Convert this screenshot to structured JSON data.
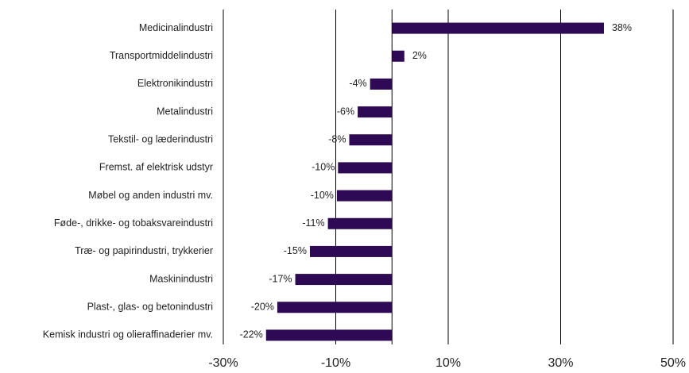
{
  "chart_data": {
    "type": "bar",
    "orientation": "horizontal",
    "categories": [
      "Medicinalindustri",
      "Transportmiddelindustri",
      "Elektronikindustri",
      "Metalindustri",
      "Tekstil- og læderindustri",
      "Fremst. af elektrisk udstyr",
      "Møbel og anden industri mv.",
      "Føde-, drikke- og tobaksvareindustri",
      "Træ- og papirindustri, trykkerier",
      "Maskinindustri",
      "Plast-, glas- og betonindustri",
      "Kemisk industri og olieraffinaderier mv."
    ],
    "values": [
      37.7,
      2.2,
      -3.9,
      -6.1,
      -7.6,
      -9.6,
      -9.8,
      -11.4,
      -14.6,
      -17.2,
      -20.4,
      -22.4
    ],
    "value_labels": [
      "38%",
      "2%",
      "-4%",
      "-6%",
      "-8%",
      "-10%",
      "-10%",
      "-11%",
      "-15%",
      "-17%",
      "-20%",
      "-22%"
    ],
    "color": "#2e0a54",
    "xlim": [
      -30,
      50
    ],
    "xticks": [
      {
        "value": -30,
        "label": "-30%"
      },
      {
        "value": -10,
        "label": "-10%"
      },
      {
        "value": 10,
        "label": "10%"
      },
      {
        "value": 30,
        "label": "30%"
      },
      {
        "value": 50,
        "label": "50%"
      }
    ],
    "grid": true
  }
}
